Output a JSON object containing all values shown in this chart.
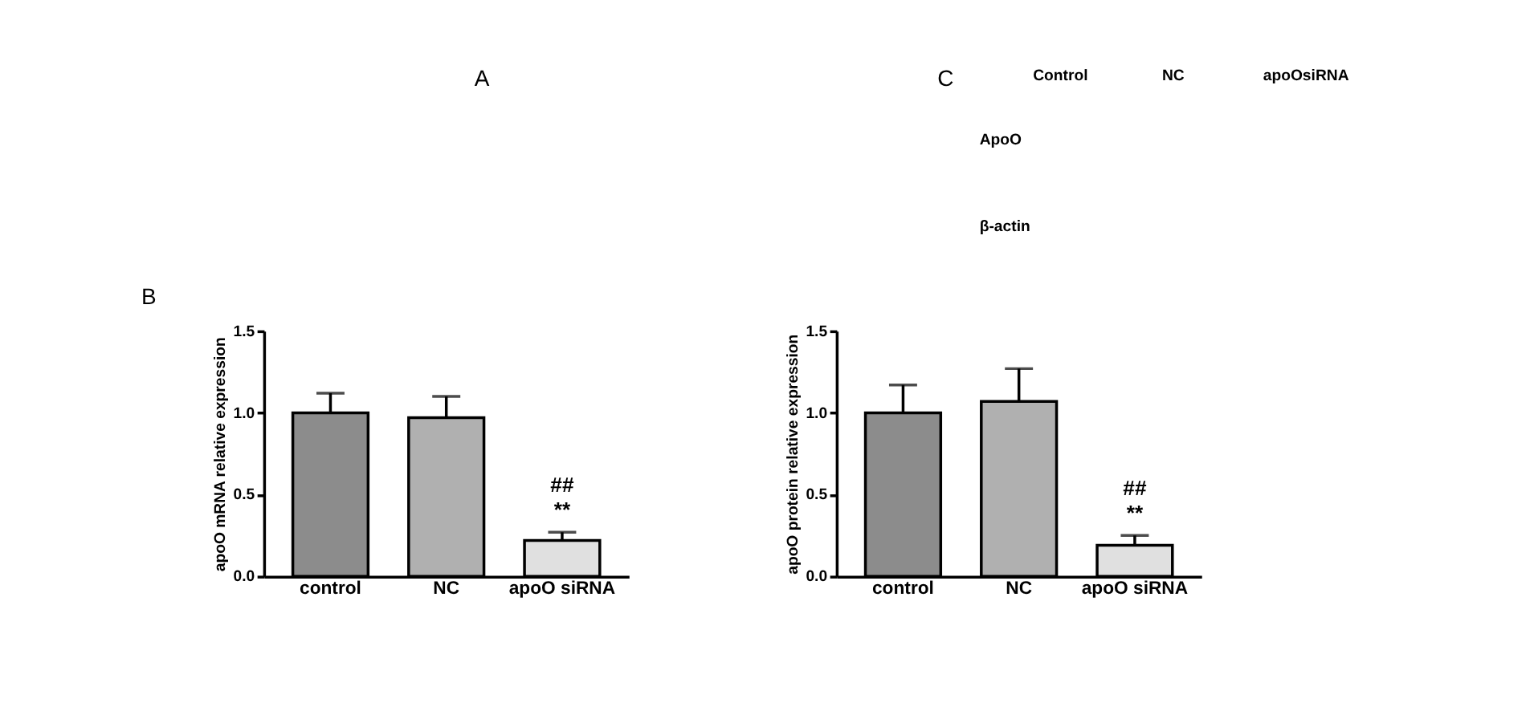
{
  "chart_data": [
    {
      "type": "other",
      "annotations": [
        "A",
        "C",
        "Control",
        "NC",
        "apoOsiRNA",
        "ApoO",
        "β-actin"
      ]
    },
    {
      "type": "bar",
      "title": "B",
      "ylabel": "apoO mRNA  relative expression",
      "categories": [
        "control",
        "NC",
        "apoO siRNA"
      ],
      "values": [
        1.0,
        0.97,
        0.22
      ],
      "errors": [
        0.12,
        0.13,
        0.05
      ],
      "colors": [
        "#8c8c8c",
        "#b0b0b0",
        "#e0e0e0"
      ],
      "ylim": [
        0,
        1.5
      ],
      "yticks": [
        {
          "value": 0,
          "label": "0.0"
        },
        {
          "value": 0.5,
          "label": "0.5"
        },
        {
          "value": 1,
          "label": "1.0"
        },
        {
          "value": 1.5,
          "label": "1.5"
        }
      ],
      "grid": false,
      "annotations": [
        "##",
        "**"
      ]
    },
    {
      "type": "bar",
      "ylabel": "apoO protein  relative expression",
      "categories": [
        "control",
        "NC",
        "apoO siRNA"
      ],
      "values": [
        1.0,
        1.07,
        0.19
      ],
      "errors": [
        0.17,
        0.2,
        0.06
      ],
      "colors": [
        "#8c8c8c",
        "#b0b0b0",
        "#e0e0e0"
      ],
      "ylim": [
        0,
        1.5
      ],
      "yticks": [
        {
          "value": 0,
          "label": "0.0"
        },
        {
          "value": 0.5,
          "label": "0.5"
        },
        {
          "value": 1,
          "label": "1.0"
        },
        {
          "value": 1.5,
          "label": "1.5"
        }
      ],
      "grid": false,
      "annotations": [
        "##",
        "**"
      ]
    }
  ]
}
